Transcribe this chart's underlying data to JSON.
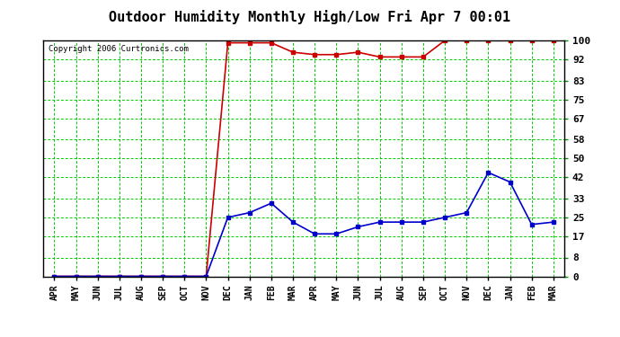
{
  "title": "Outdoor Humidity Monthly High/Low Fri Apr 7 00:01",
  "copyright": "Copyright 2006 Curtronics.com",
  "x_labels": [
    "APR",
    "MAY",
    "JUN",
    "JUL",
    "AUG",
    "SEP",
    "OCT",
    "NOV",
    "DEC",
    "JAN",
    "FEB",
    "MAR",
    "APR",
    "MAY",
    "JUN",
    "JUL",
    "AUG",
    "SEP",
    "OCT",
    "NOV",
    "DEC",
    "JAN",
    "FEB",
    "MAR"
  ],
  "high_values": [
    0,
    0,
    0,
    0,
    0,
    0,
    0,
    0,
    99,
    99,
    99,
    95,
    94,
    94,
    95,
    93,
    93,
    93,
    100,
    100,
    100,
    100,
    100,
    100
  ],
  "low_values": [
    0,
    0,
    0,
    0,
    0,
    0,
    0,
    0,
    25,
    27,
    31,
    23,
    18,
    18,
    21,
    23,
    23,
    23,
    25,
    27,
    44,
    40,
    22,
    23
  ],
  "high_color": "#cc0000",
  "low_color": "#0000cc",
  "bg_color": "#ffffff",
  "plot_bg_color": "#ffffff",
  "grid_color": "#00cc00",
  "yticks": [
    0,
    8,
    17,
    25,
    33,
    42,
    50,
    58,
    67,
    75,
    83,
    92,
    100
  ],
  "ylim": [
    0,
    100
  ],
  "title_fontsize": 11,
  "marker": "s",
  "marker_size": 3,
  "line_width": 1.2
}
